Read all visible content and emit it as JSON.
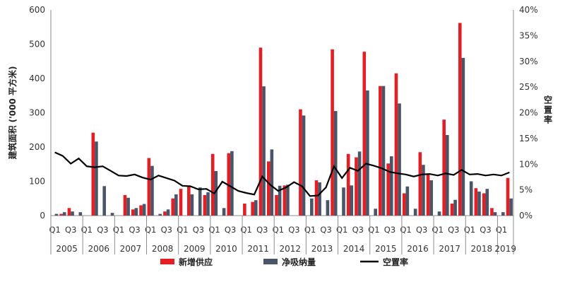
{
  "chart_data": {
    "type": "bar",
    "ylabel": "建筑面积 ('000 平方米)",
    "y2label": "空置率",
    "ylim": [
      0,
      600
    ],
    "y2lim": [
      0,
      40
    ],
    "yticks": [
      "0",
      "100",
      "200",
      "300",
      "400",
      "500",
      "600"
    ],
    "y2ticks": [
      "0%",
      "5%",
      "10%",
      "15%",
      "20%",
      "25%",
      "30%",
      "35%",
      "40%"
    ],
    "grid": false,
    "legend_position": "bottom",
    "quarter_labels": [
      "Q1",
      "Q3"
    ],
    "years": [
      "2005",
      "2006",
      "2007",
      "2008",
      "2009",
      "2010",
      "2011",
      "2012",
      "2013",
      "2014",
      "2015",
      "2016",
      "2017",
      "2018",
      "2019"
    ],
    "series": [
      {
        "name": "新增供应",
        "type": "bar",
        "color": "#e31e24",
        "values": [
          0,
          5,
          22,
          0,
          0,
          242,
          0,
          0,
          0,
          60,
          18,
          30,
          168,
          0,
          12,
          50,
          78,
          85,
          0,
          60,
          180,
          0,
          182,
          0,
          35,
          40,
          490,
          158,
          60,
          88,
          0,
          310,
          0,
          103,
          0,
          485,
          0,
          180,
          170,
          478,
          0,
          378,
          152,
          415,
          65,
          0,
          185,
          120,
          0,
          280,
          35,
          562,
          0,
          80,
          65,
          22,
          0,
          110
        ]
      },
      {
        "name": "净吸纳量",
        "type": "bar",
        "color": "#4a5668",
        "values": [
          5,
          10,
          12,
          10,
          0,
          216,
          86,
          8,
          0,
          52,
          22,
          34,
          145,
          5,
          18,
          62,
          0,
          62,
          82,
          68,
          130,
          22,
          188,
          0,
          0,
          45,
          377,
          193,
          87,
          90,
          0,
          292,
          50,
          97,
          45,
          305,
          82,
          88,
          187,
          365,
          20,
          378,
          173,
          327,
          85,
          20,
          148,
          103,
          12,
          235,
          46,
          460,
          100,
          70,
          78,
          10,
          10,
          50
        ]
      },
      {
        "name": "空置率",
        "type": "line",
        "color": "#000000",
        "values": [
          12.3,
          11.6,
          10.1,
          11.1,
          9.6,
          9.4,
          9.6,
          8.7,
          7.8,
          7.7,
          8.0,
          7.4,
          7.0,
          7.8,
          7.3,
          6.8,
          5.8,
          5.7,
          5.1,
          5.2,
          4.3,
          6.6,
          5.7,
          4.8,
          4.4,
          4.1,
          7.6,
          6.0,
          4.8,
          5.5,
          6.5,
          5.7,
          3.8,
          3.9,
          5.5,
          9.6,
          7.3,
          9.3,
          8.7,
          10.1,
          9.7,
          9.2,
          8.5,
          8.2,
          8.0,
          7.6,
          8.0,
          8.1,
          7.8,
          8.2,
          7.9,
          8.9,
          8.0,
          8.1,
          7.8,
          8.0,
          7.8,
          8.4
        ]
      }
    ]
  }
}
